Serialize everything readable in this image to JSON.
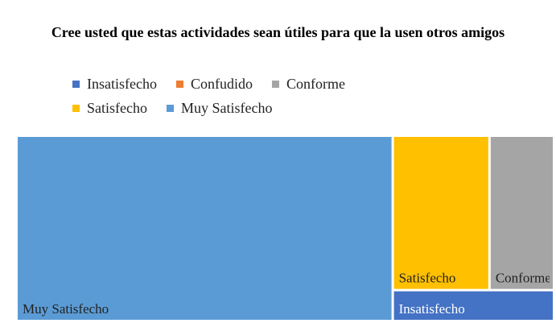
{
  "chart_data": {
    "type": "treemap",
    "title": "Cree usted que estas actividades sean útiles para que la usen otros amigos",
    "categories": [
      "Insatisfecho",
      "Confudido",
      "Conforme",
      "Satisfecho",
      "Muy Satisfecho"
    ],
    "values": [
      1,
      0,
      2,
      3,
      14
    ],
    "colors": [
      "#4472c4",
      "#ed7d31",
      "#a5a5a5",
      "#ffc000",
      "#5b9bd5"
    ],
    "legend": "top"
  }
}
